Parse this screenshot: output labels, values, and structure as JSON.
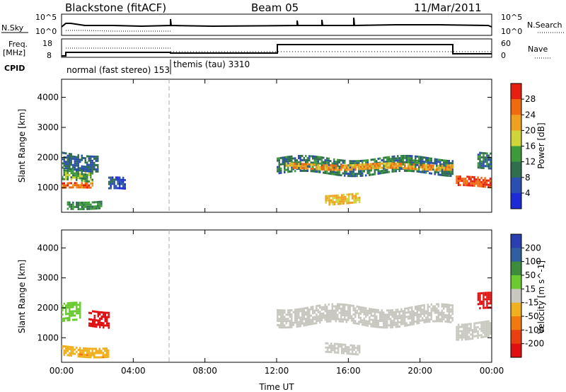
{
  "header": {
    "station": "Blackstone (fitACF)",
    "beam": "Beam 05",
    "date": "11/Mar/2011"
  },
  "nsky_panel": {
    "left_label": "N.Sky",
    "right_label": "N.Search",
    "left_ticks": [
      "10^5",
      "10^0"
    ],
    "right_ticks": [
      "10^5",
      "10^0"
    ]
  },
  "freq_panel": {
    "left_label_line1": "Freq.",
    "left_label_line2": "[MHz]",
    "right_label": "Nave",
    "left_ticks": [
      "18",
      "8"
    ],
    "right_ticks": [
      "60",
      "0"
    ]
  },
  "cpid": {
    "label": "CPID",
    "programs": [
      {
        "text": "normal (fast stereo) 153",
        "start_hour": 0
      },
      {
        "text": "themis (tau) 3310",
        "start_hour": 6
      }
    ]
  },
  "colors": {
    "power_scale": [
      "#1c2bd6",
      "#2a4fb0",
      "#2f6f4e",
      "#3d9a3a",
      "#cfd43a",
      "#f0a020",
      "#f06a10",
      "#e52010"
    ],
    "velocity_scale": [
      "#2a3fb0",
      "#2f5fa0",
      "#3c8c3c",
      "#6acb30",
      "#c8c8c0",
      "#f0b020",
      "#f07a10",
      "#e84010",
      "#e01010"
    ],
    "dash_line": "#aaaaaa"
  },
  "chart_data": [
    {
      "type": "heatmap",
      "name_hint": "power",
      "xlabel": "",
      "ylabel": "Slant Range [km]",
      "xlim": [
        0,
        24
      ],
      "ylim": [
        180,
        4600
      ],
      "xticks": [
        "00:00",
        "04:00",
        "08:00",
        "12:00",
        "16:00",
        "20:00",
        "00:00"
      ],
      "yticks": [
        1000,
        2000,
        3000,
        4000
      ],
      "colorbar": {
        "label": "Power [dB]",
        "ticks": [
          "4",
          "8",
          "12",
          "16",
          "20",
          "24",
          "28"
        ],
        "range": [
          0,
          32
        ]
      },
      "echo_regions": [
        {
          "t": [
            0.0,
            1.7
          ],
          "r_center": 1050,
          "thickness": 200,
          "value": 26
        },
        {
          "t": [
            0.0,
            1.7
          ],
          "r_center": 1400,
          "thickness": 400,
          "value": 14
        },
        {
          "t": [
            0.0,
            2.0
          ],
          "r_center": 1900,
          "thickness": 500,
          "value": 8
        },
        {
          "t": [
            0.3,
            2.2
          ],
          "r_center": 450,
          "thickness": 250,
          "value": 12
        },
        {
          "t": [
            2.6,
            3.5
          ],
          "r_center": 1100,
          "thickness": 400,
          "value": 6
        },
        {
          "t": [
            12.0,
            21.8
          ],
          "r_center": 1750,
          "thickness": 500,
          "value": 10
        },
        {
          "t": [
            12.5,
            21.8
          ],
          "r_center": 1700,
          "thickness": 200,
          "value": 22
        },
        {
          "t": [
            14.7,
            16.6
          ],
          "r_center": 650,
          "thickness": 300,
          "value": 20
        },
        {
          "t": [
            22.0,
            23.9
          ],
          "r_center": 1200,
          "thickness": 300,
          "value": 28
        },
        {
          "t": [
            23.2,
            23.9
          ],
          "r_center": 2000,
          "thickness": 500,
          "value": 10
        }
      ]
    },
    {
      "type": "heatmap",
      "name_hint": "velocity",
      "xlabel": "Time UT",
      "ylabel": "Slant Range [km]",
      "xlim": [
        0,
        24
      ],
      "ylim": [
        180,
        4600
      ],
      "xticks": [
        "00:00",
        "04:00",
        "08:00",
        "12:00",
        "16:00",
        "20:00",
        "00:00"
      ],
      "yticks": [
        1000,
        2000,
        3000,
        4000
      ],
      "colorbar": {
        "label": "Velocity [m s^-1]",
        "ticks": [
          "200",
          "100",
          "50",
          "15",
          "-15",
          "-50",
          "-100",
          "-200"
        ],
        "range": [
          -250,
          250
        ]
      },
      "echo_regions": [
        {
          "t": [
            0.0,
            1.0
          ],
          "r_center": 1800,
          "thickness": 600,
          "value": 60
        },
        {
          "t": [
            1.5,
            2.6
          ],
          "r_center": 1700,
          "thickness": 500,
          "value": -230
        },
        {
          "t": [
            0.0,
            2.6
          ],
          "r_center": 550,
          "thickness": 350,
          "value": -70
        },
        {
          "t": [
            12.0,
            21.8
          ],
          "r_center": 1750,
          "thickness": 600,
          "value": 0
        },
        {
          "t": [
            14.7,
            16.6
          ],
          "r_center": 650,
          "thickness": 300,
          "value": 0
        },
        {
          "t": [
            22.0,
            23.9
          ],
          "r_center": 1300,
          "thickness": 500,
          "value": 0
        },
        {
          "t": [
            23.2,
            23.9
          ],
          "r_center": 2200,
          "thickness": 500,
          "value": -230
        }
      ]
    }
  ]
}
